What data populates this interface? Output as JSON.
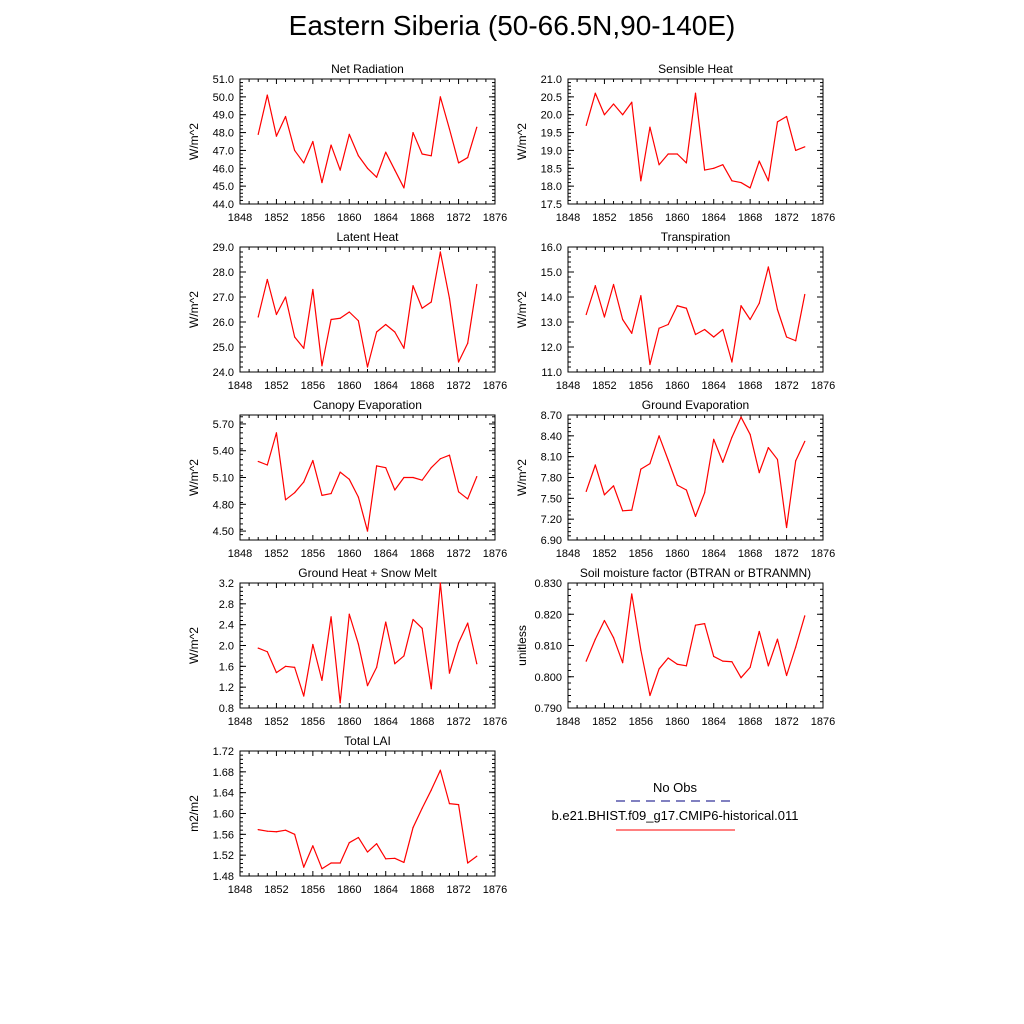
{
  "title": "Eastern Siberia (50-66.5N,90-140E)",
  "line_color": "#ff0000",
  "legend": {
    "items": [
      {
        "label": "No Obs",
        "color": "#000080",
        "style": "dashed"
      },
      {
        "label": "b.e21.BHIST.f09_g17.CMIP6-historical.011",
        "color": "#ff0000",
        "style": "solid"
      }
    ]
  },
  "chart_data": [
    {
      "type": "line",
      "title": "Net Radiation",
      "ylabel": "W/m^2",
      "xlim": [
        1848,
        1876
      ],
      "xticks": [
        "1848",
        "1852",
        "1856",
        "1860",
        "1864",
        "1868",
        "1872",
        "1876"
      ],
      "ylim": [
        44.0,
        51.0
      ],
      "yticks": [
        "44.0",
        "45.0",
        "46.0",
        "47.0",
        "48.0",
        "49.0",
        "50.0",
        "51.0"
      ],
      "x": [
        1850,
        1851,
        1852,
        1853,
        1854,
        1855,
        1856,
        1857,
        1858,
        1859,
        1860,
        1861,
        1862,
        1863,
        1864,
        1865,
        1866,
        1867,
        1868,
        1869,
        1870,
        1871,
        1872,
        1873,
        1874
      ],
      "series": [
        {
          "values": [
            47.9,
            50.1,
            47.8,
            48.9,
            47.0,
            46.3,
            47.5,
            45.2,
            47.3,
            45.9,
            47.9,
            46.7,
            46.0,
            45.5,
            46.9,
            45.9,
            44.9,
            48.0,
            46.8,
            46.7,
            50.0,
            48.2,
            46.3,
            46.6,
            48.3
          ]
        }
      ]
    },
    {
      "type": "line",
      "title": "Sensible Heat",
      "ylabel": "W/m^2",
      "xlim": [
        1848,
        1876
      ],
      "xticks": [
        "1848",
        "1852",
        "1856",
        "1860",
        "1864",
        "1868",
        "1872",
        "1876"
      ],
      "ylim": [
        17.5,
        21.0
      ],
      "yticks": [
        "17.5",
        "18.0",
        "18.5",
        "19.0",
        "19.5",
        "20.0",
        "20.5",
        "21.0"
      ],
      "x": [
        1850,
        1851,
        1852,
        1853,
        1854,
        1855,
        1856,
        1857,
        1858,
        1859,
        1860,
        1861,
        1862,
        1863,
        1864,
        1865,
        1866,
        1867,
        1868,
        1869,
        1870,
        1871,
        1872,
        1873,
        1874
      ],
      "series": [
        {
          "values": [
            19.7,
            20.6,
            20.0,
            20.3,
            20.0,
            20.35,
            18.15,
            19.65,
            18.6,
            18.9,
            18.9,
            18.65,
            20.6,
            18.45,
            18.5,
            18.6,
            18.15,
            18.1,
            17.95,
            18.7,
            18.15,
            19.8,
            19.95,
            19.0,
            19.1
          ]
        }
      ]
    },
    {
      "type": "line",
      "title": "Latent Heat",
      "ylabel": "W/m^2",
      "xlim": [
        1848,
        1876
      ],
      "xticks": [
        "1848",
        "1852",
        "1856",
        "1860",
        "1864",
        "1868",
        "1872",
        "1876"
      ],
      "ylim": [
        24.0,
        29.0
      ],
      "yticks": [
        "24.0",
        "25.0",
        "26.0",
        "27.0",
        "28.0",
        "29.0"
      ],
      "x": [
        1850,
        1851,
        1852,
        1853,
        1854,
        1855,
        1856,
        1857,
        1858,
        1859,
        1860,
        1861,
        1862,
        1863,
        1864,
        1865,
        1866,
        1867,
        1868,
        1869,
        1870,
        1871,
        1872,
        1873,
        1874
      ],
      "series": [
        {
          "values": [
            26.2,
            27.7,
            26.3,
            27.0,
            25.4,
            24.95,
            27.3,
            24.25,
            26.1,
            26.15,
            26.4,
            26.05,
            24.2,
            25.6,
            25.9,
            25.6,
            24.95,
            27.45,
            26.55,
            26.8,
            28.8,
            26.95,
            24.4,
            25.15,
            27.5
          ]
        }
      ]
    },
    {
      "type": "line",
      "title": "Transpiration",
      "ylabel": "W/m^2",
      "xlim": [
        1848,
        1876
      ],
      "xticks": [
        "1848",
        "1852",
        "1856",
        "1860",
        "1864",
        "1868",
        "1872",
        "1876"
      ],
      "ylim": [
        11.0,
        16.0
      ],
      "yticks": [
        "11.0",
        "12.0",
        "13.0",
        "14.0",
        "15.0",
        "16.0"
      ],
      "x": [
        1850,
        1851,
        1852,
        1853,
        1854,
        1855,
        1856,
        1857,
        1858,
        1859,
        1860,
        1861,
        1862,
        1863,
        1864,
        1865,
        1866,
        1867,
        1868,
        1869,
        1870,
        1871,
        1872,
        1873,
        1874
      ],
      "series": [
        {
          "values": [
            13.3,
            14.45,
            13.2,
            14.5,
            13.1,
            12.55,
            14.05,
            11.3,
            12.75,
            12.9,
            13.65,
            13.55,
            12.5,
            12.7,
            12.4,
            12.7,
            11.4,
            13.65,
            13.1,
            13.75,
            15.2,
            13.5,
            12.4,
            12.25,
            14.1
          ]
        }
      ]
    },
    {
      "type": "line",
      "title": "Canopy Evaporation",
      "ylabel": "W/m^2",
      "xlim": [
        1848,
        1876
      ],
      "xticks": [
        "1848",
        "1852",
        "1856",
        "1860",
        "1864",
        "1868",
        "1872",
        "1876"
      ],
      "ylim": [
        4.4,
        5.8
      ],
      "yticks": [
        "4.50",
        "4.80",
        "5.10",
        "5.40",
        "5.70"
      ],
      "ytick_values": [
        4.5,
        4.8,
        5.1,
        5.4,
        5.7
      ],
      "x": [
        1850,
        1851,
        1852,
        1853,
        1854,
        1855,
        1856,
        1857,
        1858,
        1859,
        1860,
        1861,
        1862,
        1863,
        1864,
        1865,
        1866,
        1867,
        1868,
        1869,
        1870,
        1871,
        1872,
        1873,
        1874
      ],
      "series": [
        {
          "values": [
            5.28,
            5.24,
            5.6,
            4.85,
            4.93,
            5.05,
            5.29,
            4.9,
            4.92,
            5.16,
            5.08,
            4.88,
            4.5,
            5.23,
            5.21,
            4.96,
            5.1,
            5.1,
            5.07,
            5.21,
            5.31,
            5.35,
            4.94,
            4.86,
            5.11
          ]
        }
      ]
    },
    {
      "type": "line",
      "title": "Ground Evaporation",
      "ylabel": "W/m^2",
      "xlim": [
        1848,
        1876
      ],
      "xticks": [
        "1848",
        "1852",
        "1856",
        "1860",
        "1864",
        "1868",
        "1872",
        "1876"
      ],
      "ylim": [
        6.9,
        8.7
      ],
      "yticks": [
        "6.90",
        "7.20",
        "7.50",
        "7.80",
        "8.10",
        "8.40",
        "8.70"
      ],
      "x": [
        1850,
        1851,
        1852,
        1853,
        1854,
        1855,
        1856,
        1857,
        1858,
        1859,
        1860,
        1861,
        1862,
        1863,
        1864,
        1865,
        1866,
        1867,
        1868,
        1869,
        1870,
        1871,
        1872,
        1873,
        1874
      ],
      "series": [
        {
          "values": [
            7.6,
            7.98,
            7.55,
            7.68,
            7.32,
            7.33,
            7.92,
            8.0,
            8.4,
            8.05,
            7.69,
            7.62,
            7.24,
            7.58,
            8.35,
            8.02,
            8.38,
            8.67,
            8.42,
            7.87,
            8.23,
            8.06,
            7.08,
            8.04,
            8.32
          ]
        }
      ]
    },
    {
      "type": "line",
      "title": "Ground Heat + Snow Melt",
      "ylabel": "W/m^2",
      "xlim": [
        1848,
        1876
      ],
      "xticks": [
        "1848",
        "1852",
        "1856",
        "1860",
        "1864",
        "1868",
        "1872",
        "1876"
      ],
      "ylim": [
        0.8,
        3.2
      ],
      "yticks": [
        "0.8",
        "1.2",
        "1.6",
        "2.0",
        "2.4",
        "2.8",
        "3.2"
      ],
      "x": [
        1850,
        1851,
        1852,
        1853,
        1854,
        1855,
        1856,
        1857,
        1858,
        1859,
        1860,
        1861,
        1862,
        1863,
        1864,
        1865,
        1866,
        1867,
        1868,
        1869,
        1870,
        1871,
        1872,
        1873,
        1874
      ],
      "series": [
        {
          "values": [
            1.95,
            1.88,
            1.48,
            1.6,
            1.58,
            1.03,
            2.02,
            1.33,
            2.55,
            0.9,
            2.6,
            2.03,
            1.23,
            1.58,
            2.45,
            1.65,
            1.8,
            2.5,
            2.33,
            1.17,
            3.2,
            1.47,
            2.05,
            2.43,
            1.65
          ]
        }
      ]
    },
    {
      "type": "line",
      "title": "Soil moisture factor (BTRAN or BTRANMN)",
      "ylabel": "unitless",
      "xlim": [
        1848,
        1876
      ],
      "xticks": [
        "1848",
        "1852",
        "1856",
        "1860",
        "1864",
        "1868",
        "1872",
        "1876"
      ],
      "ylim": [
        0.79,
        0.83
      ],
      "yticks": [
        "0.790",
        "0.800",
        "0.810",
        "0.820",
        "0.830"
      ],
      "x": [
        1850,
        1851,
        1852,
        1853,
        1854,
        1855,
        1856,
        1857,
        1858,
        1859,
        1860,
        1861,
        1862,
        1863,
        1864,
        1865,
        1866,
        1867,
        1868,
        1869,
        1870,
        1871,
        1872,
        1873,
        1874
      ],
      "series": [
        {
          "values": [
            0.805,
            0.812,
            0.818,
            0.8125,
            0.8045,
            0.8265,
            0.8085,
            0.794,
            0.8025,
            0.806,
            0.804,
            0.8035,
            0.8165,
            0.817,
            0.8065,
            0.805,
            0.8048,
            0.7997,
            0.803,
            0.8145,
            0.8035,
            0.812,
            0.8004,
            0.8095,
            0.8195
          ]
        }
      ]
    },
    {
      "type": "line",
      "title": "Total LAI",
      "ylabel": "m2/m2",
      "xlim": [
        1848,
        1876
      ],
      "xticks": [
        "1848",
        "1852",
        "1856",
        "1860",
        "1864",
        "1868",
        "1872",
        "1876"
      ],
      "ylim": [
        1.48,
        1.72
      ],
      "yticks": [
        "1.48",
        "1.52",
        "1.56",
        "1.60",
        "1.64",
        "1.68",
        "1.72"
      ],
      "x": [
        1850,
        1851,
        1852,
        1853,
        1854,
        1855,
        1856,
        1857,
        1858,
        1859,
        1860,
        1861,
        1862,
        1863,
        1864,
        1865,
        1866,
        1867,
        1868,
        1869,
        1870,
        1871,
        1872,
        1873,
        1874
      ],
      "series": [
        {
          "values": [
            1.569,
            1.566,
            1.565,
            1.568,
            1.56,
            1.497,
            1.538,
            1.494,
            1.505,
            1.505,
            1.544,
            1.554,
            1.526,
            1.542,
            1.513,
            1.514,
            1.506,
            1.573,
            1.61,
            1.645,
            1.683,
            1.619,
            1.617,
            1.505,
            1.518
          ]
        }
      ]
    }
  ]
}
